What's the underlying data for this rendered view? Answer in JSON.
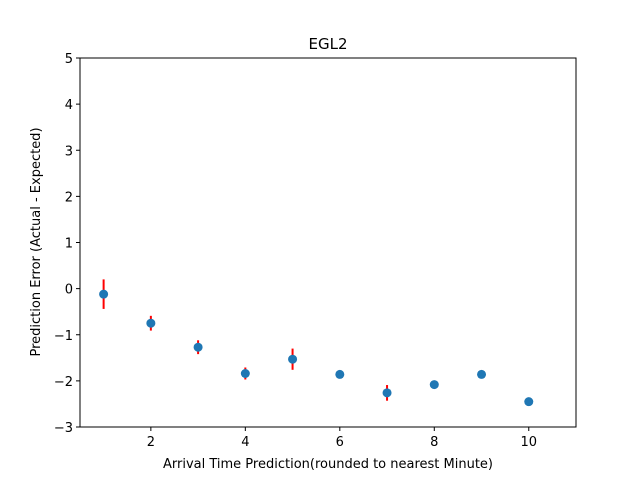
{
  "chart_data": {
    "type": "scatter",
    "title": "EGL2",
    "xlabel": "Arrival Time Prediction(rounded to nearest Minute)",
    "ylabel": "Prediction Error (Actual - Expected)",
    "xlim": [
      0.5,
      11
    ],
    "ylim": [
      -3,
      5
    ],
    "xticks": [
      2,
      4,
      6,
      8,
      10
    ],
    "yticks": [
      -3,
      -2,
      -1,
      0,
      1,
      2,
      3,
      4,
      5
    ],
    "grid": false,
    "marker_color": "#1f77b4",
    "errorbar_color": "#ff0000",
    "points": [
      {
        "x": 1,
        "y": -0.12,
        "err": 0.32
      },
      {
        "x": 2,
        "y": -0.75,
        "err": 0.16
      },
      {
        "x": 3,
        "y": -1.27,
        "err": 0.15
      },
      {
        "x": 4,
        "y": -1.84,
        "err": 0.13
      },
      {
        "x": 5,
        "y": -1.53,
        "err": 0.23
      },
      {
        "x": 6,
        "y": -1.86,
        "err": 0.07
      },
      {
        "x": 7,
        "y": -2.26,
        "err": 0.17
      },
      {
        "x": 8,
        "y": -2.08,
        "err": 0
      },
      {
        "x": 9,
        "y": -1.86,
        "err": 0
      },
      {
        "x": 10,
        "y": -2.45,
        "err": 0
      }
    ]
  }
}
